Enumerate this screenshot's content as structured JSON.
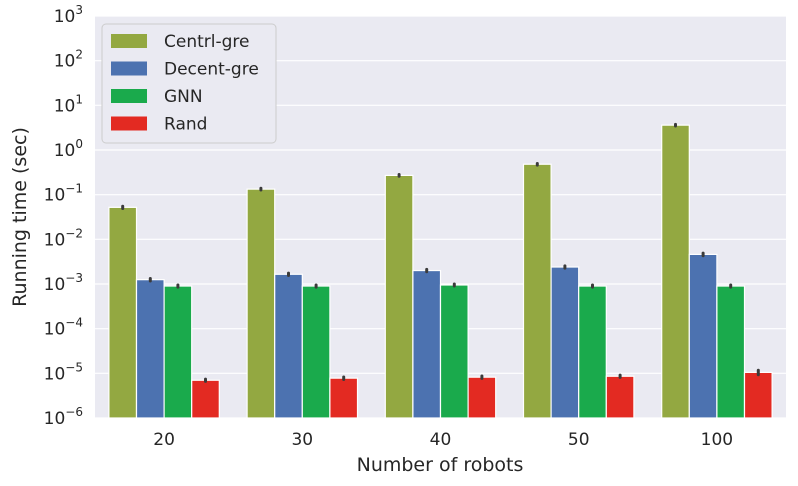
{
  "chart_data": {
    "type": "bar",
    "xlabel": "Number of robots",
    "ylabel": "Running time (sec)",
    "yscale": "log",
    "ylim": [
      1e-06,
      1000
    ],
    "grid": true,
    "legend_position": "top-left",
    "categories": [
      "20",
      "30",
      "40",
      "50",
      "100"
    ],
    "y_ticks": [
      {
        "value": 1e-06,
        "base": "10",
        "exp": "−6"
      },
      {
        "value": 1e-05,
        "base": "10",
        "exp": "−5"
      },
      {
        "value": 0.0001,
        "base": "10",
        "exp": "−4"
      },
      {
        "value": 0.001,
        "base": "10",
        "exp": "−3"
      },
      {
        "value": 0.01,
        "base": "10",
        "exp": "−2"
      },
      {
        "value": 0.1,
        "base": "10",
        "exp": "−1"
      },
      {
        "value": 1,
        "base": "10",
        "exp": "0"
      },
      {
        "value": 10,
        "base": "10",
        "exp": "1"
      },
      {
        "value": 100,
        "base": "10",
        "exp": "2"
      },
      {
        "value": 1000,
        "base": "10",
        "exp": "3"
      }
    ],
    "series": [
      {
        "name": "Centrl-gre",
        "color": "#93a841",
        "values": [
          0.052,
          0.133,
          0.27,
          0.48,
          3.6
        ],
        "errors": [
          0.003,
          0.006,
          0.012,
          0.02,
          0.15
        ]
      },
      {
        "name": "Decent-gre",
        "color": "#4c72b0",
        "values": [
          0.00125,
          0.00165,
          0.002,
          0.0024,
          0.0046
        ],
        "errors": [
          8e-05,
          0.0001,
          0.00012,
          0.00014,
          0.0003
        ]
      },
      {
        "name": "GNN",
        "color": "#1aaa4c",
        "values": [
          0.0009,
          0.0009,
          0.00095,
          0.0009,
          0.0009
        ],
        "errors": [
          5e-05,
          5e-05,
          5e-05,
          5e-05,
          5e-05
        ]
      },
      {
        "name": "Rand",
        "color": "#e32a22",
        "values": [
          7e-06,
          7.8e-06,
          8.2e-06,
          8.6e-06,
          1.05e-05
        ],
        "errors": [
          4e-07,
          5e-07,
          5e-07,
          5e-07,
          1.2e-06
        ]
      }
    ]
  }
}
